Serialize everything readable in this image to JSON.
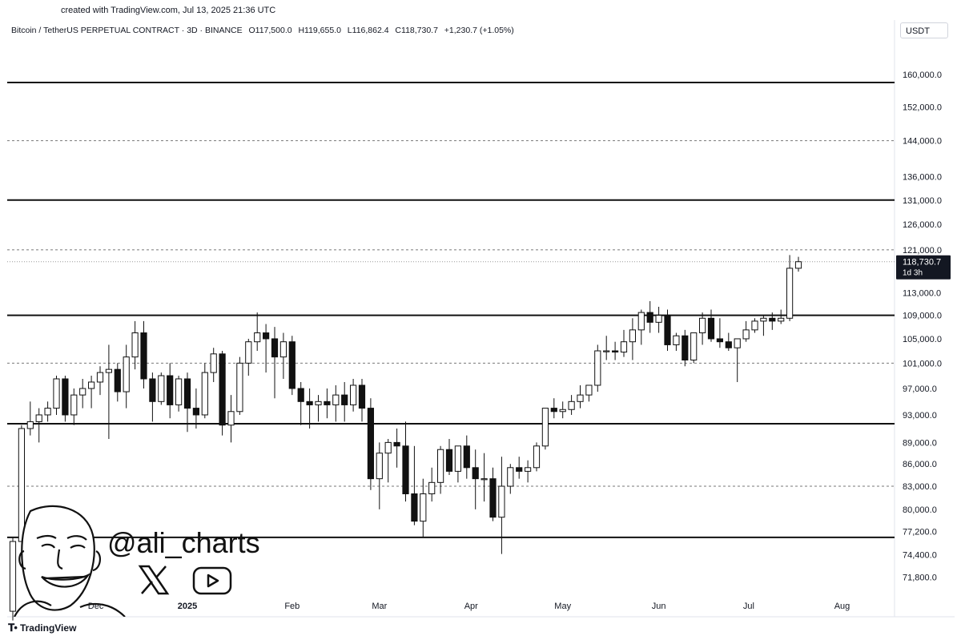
{
  "header": {
    "created_text": "created with TradingView.com, Jul 13, 2025 21:36 UTC",
    "symbol": "Bitcoin / TetherUS PERPETUAL CONTRACT · 3D · BINANCE",
    "open": "O117,500.0",
    "high": "H119,655.0",
    "low": "L116,862.4",
    "close": "C118,730.7",
    "change": "+1,230.7 (+1.05%)",
    "currency": "USDT"
  },
  "footer": {
    "brand": "TradingView"
  },
  "watermark": {
    "handle": "@ali_charts"
  },
  "price_labels": [
    "160,000.0",
    "152,000.0",
    "144,000.0",
    "136,000.0",
    "131,000.0",
    "126,000.0",
    "121,000.0",
    "113,000.0",
    "109,000.0",
    "105,000.0",
    "101,000.0",
    "97,000.0",
    "93,000.0",
    "89,000.0",
    "86,000.0",
    "83,000.0",
    "80,000.0",
    "77,200.0",
    "74,400.0",
    "71,800.0"
  ],
  "current_price": {
    "value": "118,730.7",
    "countdown": "1d 3h"
  },
  "time_labels": [
    "Dec",
    "2025",
    "Feb",
    "Mar",
    "Apr",
    "May",
    "Jun",
    "Jul",
    "Aug"
  ],
  "chart_data": {
    "type": "candlestick",
    "interval": "3D",
    "scale": "log",
    "ylim": [
      69500,
      168000
    ],
    "last_price": 118730.7,
    "solid_levels": [
      158000,
      131000,
      109000,
      91700,
      76500
    ],
    "dashed_levels": [
      144000,
      121000,
      101000,
      83000
    ],
    "candles": [
      [
        0,
        68000,
        76500,
        67000,
        76000
      ],
      [
        1,
        76000,
        91500,
        76000,
        91000
      ],
      [
        2,
        91000,
        95000,
        90000,
        92000
      ],
      [
        3,
        92000,
        94000,
        89000,
        93000
      ],
      [
        4,
        93000,
        95000,
        92000,
        94000
      ],
      [
        5,
        94000,
        99000,
        93000,
        98500
      ],
      [
        6,
        98500,
        99000,
        92000,
        93000
      ],
      [
        7,
        93000,
        97000,
        91500,
        96000
      ],
      [
        8,
        96000,
        98500,
        94000,
        97000
      ],
      [
        9,
        97000,
        99000,
        94000,
        98000
      ],
      [
        10,
        98000,
        100500,
        96000,
        99500
      ],
      [
        11,
        99500,
        104000,
        89500,
        100000
      ],
      [
        12,
        100000,
        101000,
        95000,
        96500
      ],
      [
        13,
        96500,
        104000,
        94000,
        102000
      ],
      [
        14,
        102000,
        108000,
        100000,
        106000
      ],
      [
        15,
        106000,
        108000,
        97000,
        98500
      ],
      [
        16,
        98500,
        99500,
        92000,
        95000
      ],
      [
        17,
        95000,
        99500,
        94500,
        99000
      ],
      [
        18,
        99000,
        101000,
        92500,
        94500
      ],
      [
        19,
        94500,
        99000,
        93500,
        98500
      ],
      [
        20,
        98500,
        99500,
        90500,
        94000
      ],
      [
        21,
        94000,
        97000,
        91000,
        93000
      ],
      [
        22,
        93000,
        101000,
        92500,
        99500
      ],
      [
        23,
        99500,
        103500,
        98000,
        102500
      ],
      [
        24,
        102500,
        103000,
        90000,
        91500
      ],
      [
        25,
        91500,
        96000,
        89000,
        93500
      ],
      [
        26,
        93500,
        102000,
        93000,
        101000
      ],
      [
        27,
        101000,
        105000,
        99000,
        104500
      ],
      [
        28,
        104500,
        109500,
        103000,
        106000
      ],
      [
        29,
        106000,
        107500,
        99500,
        105000
      ],
      [
        30,
        105000,
        107000,
        95500,
        102000
      ],
      [
        31,
        102000,
        106000,
        98500,
        104500
      ],
      [
        32,
        104500,
        105500,
        96000,
        97000
      ],
      [
        33,
        97000,
        98000,
        91500,
        95000
      ],
      [
        34,
        95000,
        97000,
        91000,
        94500
      ],
      [
        35,
        94500,
        96000,
        92000,
        95000
      ],
      [
        36,
        95000,
        97000,
        92500,
        94500
      ],
      [
        37,
        94500,
        97500,
        92000,
        96000
      ],
      [
        38,
        96000,
        98000,
        92000,
        94500
      ],
      [
        39,
        94500,
        98500,
        93500,
        97500
      ],
      [
        40,
        97500,
        98500,
        92000,
        94000
      ],
      [
        41,
        94000,
        95500,
        82500,
        84000
      ],
      [
        42,
        84000,
        89000,
        80000,
        87500
      ],
      [
        43,
        87500,
        89500,
        83500,
        89000
      ],
      [
        44,
        89000,
        91000,
        85500,
        88500
      ],
      [
        45,
        88500,
        92000,
        81000,
        82000
      ],
      [
        46,
        82000,
        88500,
        78000,
        78500
      ],
      [
        47,
        78500,
        84000,
        76500,
        82000
      ],
      [
        48,
        82000,
        85500,
        81000,
        83500
      ],
      [
        49,
        83500,
        88500,
        82000,
        88000
      ],
      [
        50,
        88000,
        89500,
        84500,
        85000
      ],
      [
        51,
        85000,
        88000,
        83500,
        88500
      ],
      [
        52,
        88500,
        90000,
        84000,
        85500
      ],
      [
        53,
        85500,
        88000,
        80000,
        84000
      ],
      [
        54,
        84000,
        87500,
        81000,
        84000
      ],
      [
        55,
        84000,
        85500,
        78500,
        79000
      ],
      [
        56,
        79000,
        87000,
        74500,
        83000
      ],
      [
        57,
        83000,
        86000,
        82000,
        85500
      ],
      [
        58,
        85500,
        87000,
        84000,
        85000
      ],
      [
        59,
        85000,
        86500,
        83500,
        85500
      ],
      [
        60,
        85500,
        89000,
        85000,
        88500
      ],
      [
        61,
        88500,
        94000,
        88000,
        94000
      ],
      [
        62,
        94000,
        95500,
        92500,
        93500
      ],
      [
        63,
        93500,
        95000,
        92500,
        93800
      ],
      [
        64,
        93800,
        96000,
        93000,
        95000
      ],
      [
        65,
        95000,
        97500,
        94000,
        96000
      ],
      [
        66,
        96000,
        97500,
        95000,
        97500
      ],
      [
        67,
        97500,
        104000,
        96500,
        103000
      ],
      [
        68,
        103000,
        105500,
        101500,
        103000
      ],
      [
        69,
        103000,
        104500,
        101500,
        102800
      ],
      [
        70,
        102800,
        106500,
        102000,
        104500
      ],
      [
        71,
        104500,
        108500,
        101500,
        106500
      ],
      [
        72,
        106500,
        110000,
        104000,
        109500
      ],
      [
        73,
        109500,
        111500,
        106000,
        107800
      ],
      [
        74,
        107800,
        110500,
        106000,
        109000
      ],
      [
        75,
        109000,
        110000,
        103000,
        104000
      ],
      [
        76,
        104000,
        106000,
        103000,
        105500
      ],
      [
        77,
        105500,
        106500,
        100500,
        101500
      ],
      [
        78,
        101500,
        106000,
        101000,
        106000
      ],
      [
        79,
        106000,
        109500,
        104000,
        108500
      ],
      [
        80,
        108500,
        110000,
        104500,
        105000
      ],
      [
        81,
        105000,
        108500,
        103500,
        104500
      ],
      [
        82,
        104500,
        106000,
        103000,
        103500
      ],
      [
        83,
        103500,
        105000,
        98000,
        105000
      ],
      [
        84,
        105000,
        108000,
        104500,
        106500
      ],
      [
        85,
        106500,
        108500,
        106000,
        108000
      ],
      [
        86,
        108000,
        109000,
        105500,
        108500
      ],
      [
        87,
        108500,
        109500,
        106500,
        108000
      ],
      [
        88,
        108000,
        110000,
        107500,
        108500
      ],
      [
        89,
        108500,
        120000,
        108000,
        117500
      ],
      [
        90,
        117500,
        119655,
        116862.4,
        118730.7
      ]
    ]
  }
}
